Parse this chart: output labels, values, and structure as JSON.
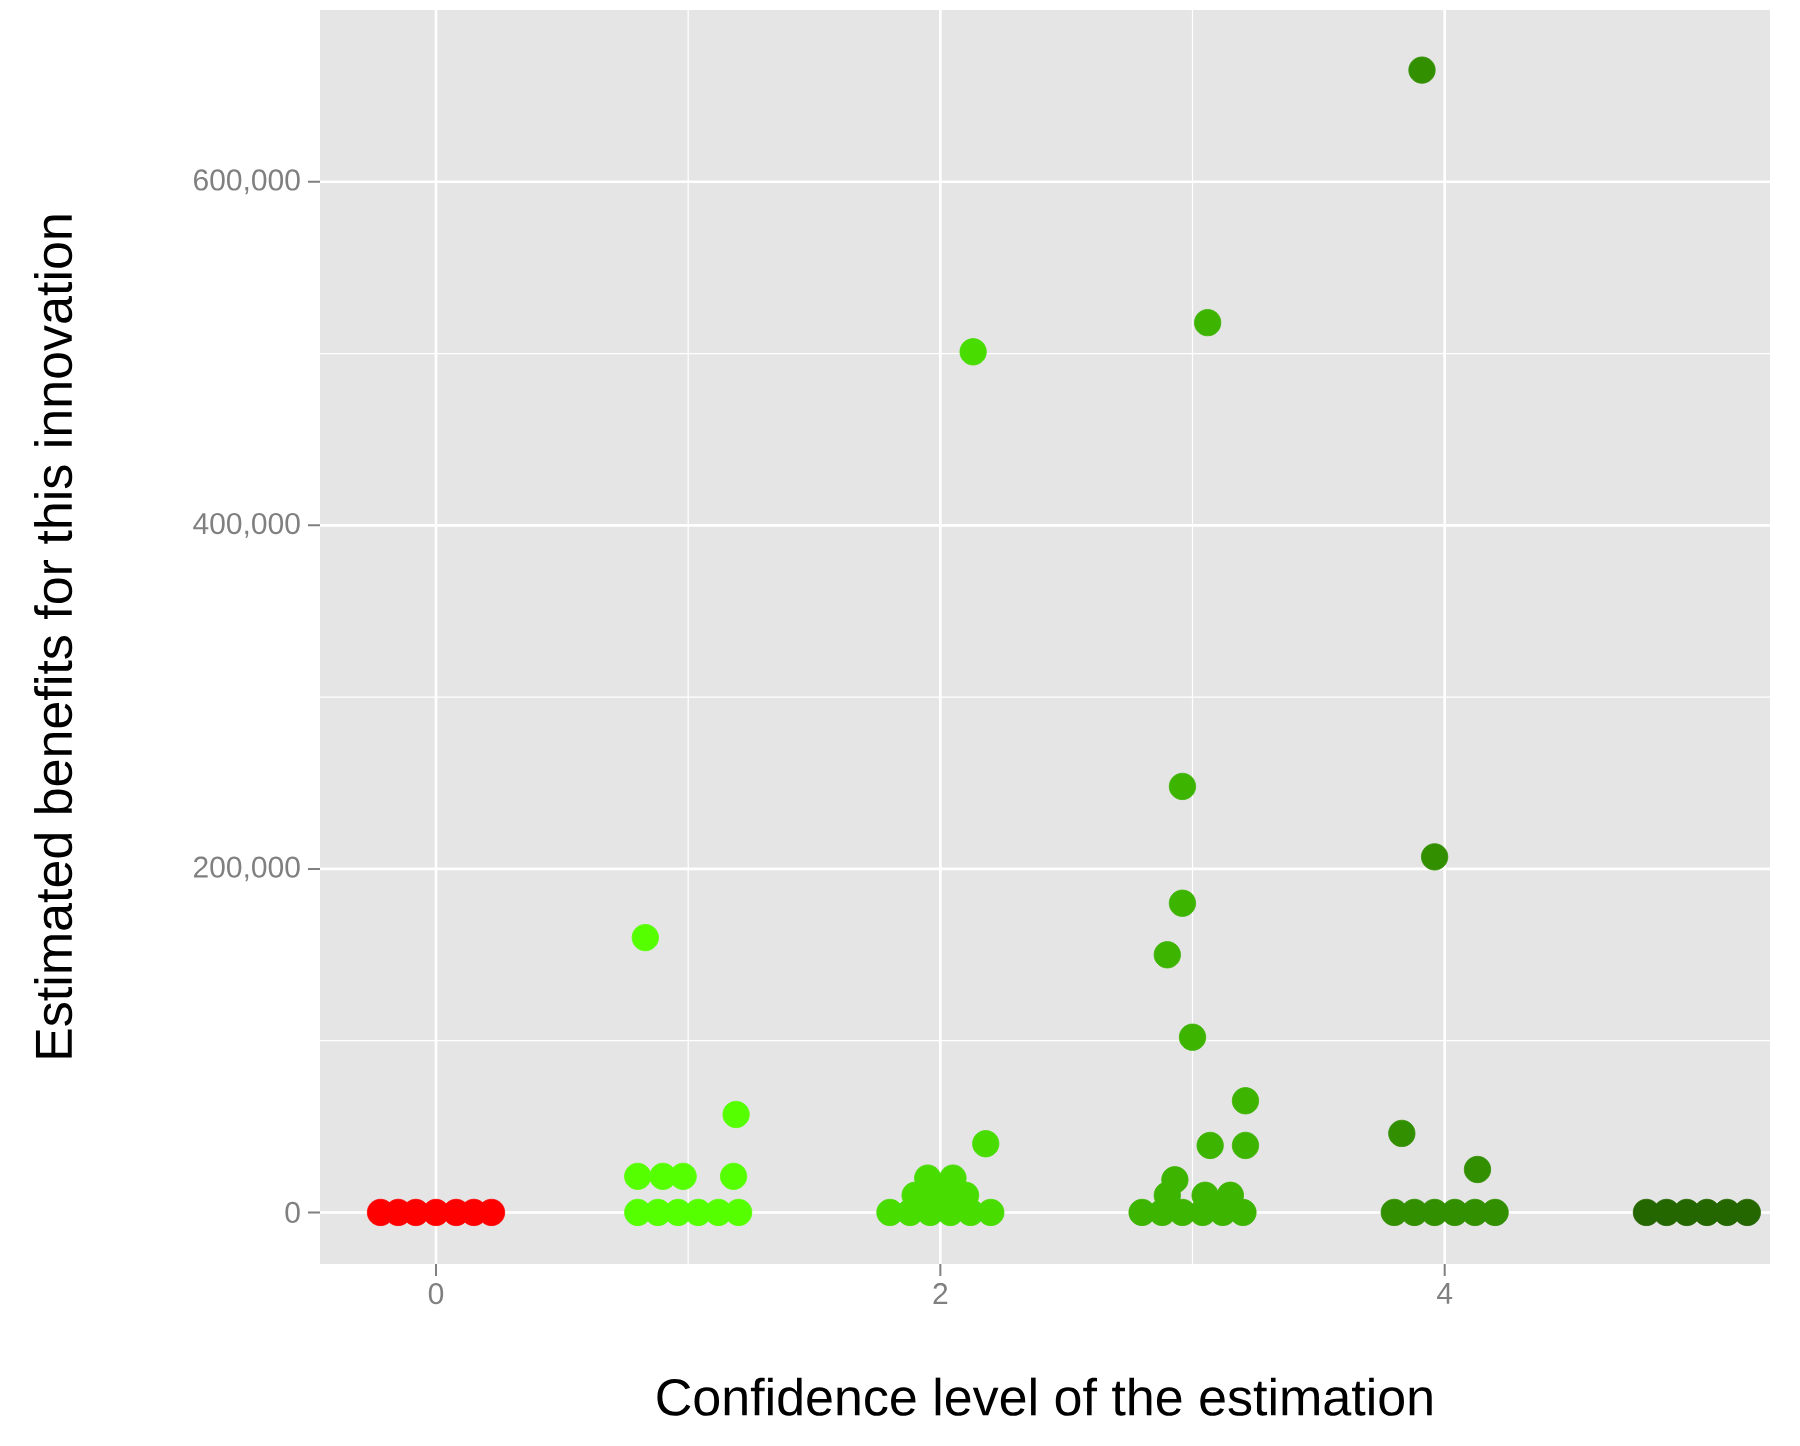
{
  "chart_data": {
    "type": "scatter",
    "xlabel": "Confidence level of the estimation",
    "ylabel": "Estimated benefits for this innovation",
    "xlim": [
      -0.46,
      5.29
    ],
    "ylim": [
      -30000,
      700000
    ],
    "xticks": [
      0,
      2,
      4
    ],
    "yticks": [
      {
        "value": 0,
        "label": "0"
      },
      {
        "value": 200000,
        "label": "200,000"
      },
      {
        "value": 400000,
        "label": "400,000"
      },
      {
        "value": 600000,
        "label": "600,000"
      }
    ],
    "grid": true,
    "marker": "circle",
    "series": [
      {
        "color": "#ff0000",
        "x": [
          -0.22,
          -0.15,
          -0.08,
          0,
          0.08,
          0.15,
          0.22
        ],
        "values": [
          0,
          0,
          0,
          0,
          0,
          0,
          0
        ]
      },
      {
        "color": "#55ff00",
        "x": [
          0.8,
          0.88,
          0.96,
          1.04,
          1.12,
          1.2,
          0.8,
          0.9,
          0.98,
          1.18,
          1.19,
          0.83
        ],
        "values": [
          0,
          0,
          0,
          0,
          0,
          0,
          21000,
          21000,
          21000,
          21000,
          57000,
          160000
        ]
      },
      {
        "color": "#48dc00",
        "x": [
          1.8,
          1.88,
          1.96,
          2.04,
          2.12,
          2.2,
          1.9,
          2.0,
          2.1,
          1.95,
          2.05,
          2.18,
          2.13
        ],
        "values": [
          0,
          0,
          0,
          0,
          0,
          0,
          10000,
          10000,
          10000,
          20000,
          20000,
          40000,
          501000
        ]
      },
      {
        "color": "#3cb400",
        "x": [
          2.8,
          2.88,
          2.96,
          3.04,
          3.12,
          3.2,
          2.9,
          3.05,
          3.15,
          2.93,
          3.07,
          3.21,
          3.21,
          3.0,
          2.9,
          2.96,
          2.96,
          3.06
        ],
        "values": [
          0,
          0,
          0,
          0,
          0,
          0,
          10000,
          10000,
          10000,
          19000,
          39000,
          39000,
          65000,
          102000,
          150000,
          180000,
          248000,
          518000
        ]
      },
      {
        "color": "#318f00",
        "x": [
          3.8,
          3.88,
          3.96,
          4.04,
          4.12,
          4.2,
          4.13,
          3.83,
          3.96,
          3.91
        ],
        "values": [
          0,
          0,
          0,
          0,
          0,
          0,
          25000,
          46000,
          207000,
          665000
        ]
      },
      {
        "color": "#246600",
        "x": [
          4.8,
          4.88,
          4.96,
          5.04,
          5.12,
          5.2
        ],
        "values": [
          0,
          0,
          0,
          0,
          0,
          0
        ]
      }
    ]
  }
}
